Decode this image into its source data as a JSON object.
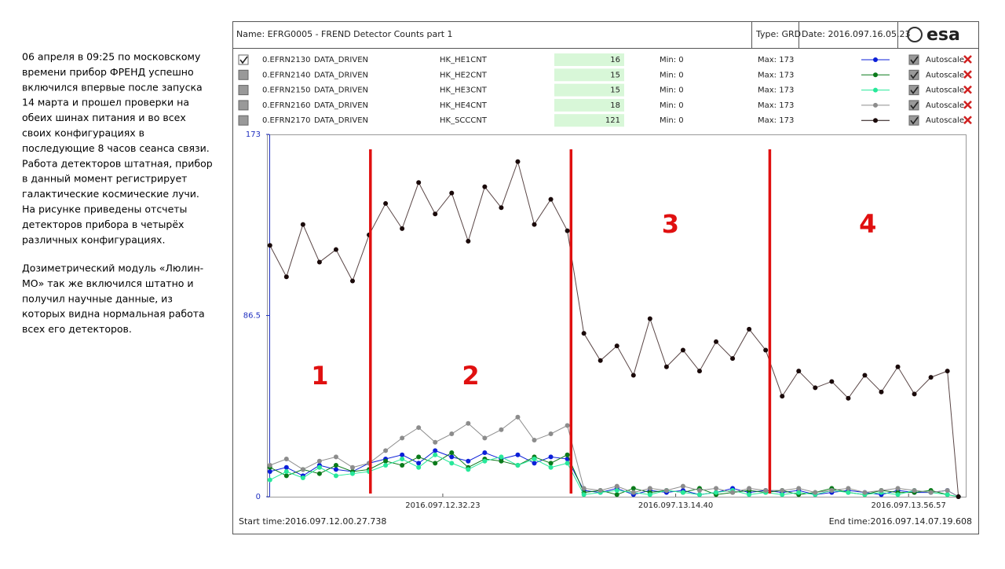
{
  "sidebar": {
    "paragraphs": [
      [
        "06 апреля в 09:25 по московскому",
        "времени прибор ФРЕНД успешно",
        "включился впервые после запуска",
        "14 марта и прошел проверки  на",
        "обеих шинах питания и во всех",
        "своих конфигурациях в",
        "последующие 8 часов сеанса связи.",
        "Работа детекторов штатная, прибор",
        "в данный момент регистрирует",
        "галактические космические лучи.",
        "На рисунке приведены отсчеты",
        "детекторов прибора в четырёх",
        "различных конфигурациях."
      ],
      [
        "Дозиметрический модуль «Люлин-",
        "МО» так же включился штатно и",
        "получил научные данные, из",
        "которых видна нормальная работа",
        "всех его детекторов."
      ]
    ]
  },
  "header": {
    "name": "Name: EFRG0005  -  FREND Detector Counts part 1",
    "type": "Type: GRD",
    "date": "Date: 2016.097.16.05.23",
    "logo": "esa"
  },
  "parameters": [
    {
      "id": "0.EFRN2130",
      "mode": "DATA_DRIVEN",
      "name": "HK_HE1CNT",
      "value": 16,
      "min": "Min: 0",
      "max": "Max: 173",
      "autoscale": "Autoscale"
    },
    {
      "id": "0.EFRN2140",
      "mode": "DATA_DRIVEN",
      "name": "HK_HE2CNT",
      "value": 15,
      "min": "Min: 0",
      "max": "Max: 173",
      "autoscale": "Autoscale"
    },
    {
      "id": "0.EFRN2150",
      "mode": "DATA_DRIVEN",
      "name": "HK_HE3CNT",
      "value": 15,
      "min": "Min: 0",
      "max": "Max: 173",
      "autoscale": "Autoscale"
    },
    {
      "id": "0.EFRN2160",
      "mode": "DATA_DRIVEN",
      "name": "HK_HE4CNT",
      "value": 18,
      "min": "Min: 0",
      "max": "Max: 173",
      "autoscale": "Autoscale"
    },
    {
      "id": "0.EFRN2170",
      "mode": "DATA_DRIVEN",
      "name": "HK_SCCCNT",
      "value": 121,
      "min": "Min: 0",
      "max": "Max: 173",
      "autoscale": "Autoscale"
    }
  ],
  "chart_data": {
    "type": "line",
    "x": [
      "2016.097.12.01.00",
      "2016.097.12.04.00",
      "2016.097.12.07.00",
      "2016.097.12.10.00",
      "2016.097.12.13.00",
      "2016.097.12.16.00",
      "2016.097.12.19.00",
      "2016.097.12.22.00",
      "2016.097.12.25.00",
      "2016.097.12.28.00",
      "2016.097.12.31.00",
      "2016.097.12.34.00",
      "2016.097.12.37.00",
      "2016.097.12.40.00",
      "2016.097.12.43.00",
      "2016.097.12.46.00",
      "2016.097.12.49.00",
      "2016.097.12.52.00",
      "2016.097.12.55.00",
      "2016.097.12.58.00",
      "2016.097.13.01.00",
      "2016.097.13.04.00",
      "2016.097.13.07.00",
      "2016.097.13.10.00",
      "2016.097.13.13.00",
      "2016.097.13.16.00",
      "2016.097.13.19.00",
      "2016.097.13.22.00",
      "2016.097.13.25.00",
      "2016.097.13.28.00",
      "2016.097.13.31.00",
      "2016.097.13.34.00",
      "2016.097.13.37.00",
      "2016.097.13.40.00",
      "2016.097.13.43.00",
      "2016.097.13.46.00",
      "2016.097.13.49.00",
      "2016.097.13.52.00",
      "2016.097.13.55.00",
      "2016.097.13.58.00",
      "2016.097.14.01.00",
      "2016.097.14.04.00",
      "2016.097.14.06.00"
    ],
    "series": [
      {
        "color": "#0b1fd8",
        "values": [
          12,
          14,
          10,
          15,
          13,
          12,
          16,
          18,
          20,
          16,
          22,
          19,
          17,
          21,
          18,
          20,
          16,
          19,
          18,
          3,
          2,
          4,
          1,
          3,
          2,
          3,
          1,
          2,
          4,
          2,
          3,
          2,
          3,
          1,
          2,
          3,
          2,
          1,
          3,
          2,
          2,
          3,
          0
        ]
      },
      {
        "color": "#0a7a1a",
        "values": [
          14,
          10,
          13,
          11,
          15,
          12,
          13,
          17,
          15,
          19,
          16,
          21,
          14,
          18,
          17,
          15,
          19,
          16,
          20,
          2,
          3,
          1,
          4,
          2,
          3,
          2,
          4,
          1,
          2,
          3,
          2,
          3,
          1,
          2,
          4,
          2,
          1,
          3,
          2,
          2,
          3,
          1,
          0
        ]
      },
      {
        "color": "#27e89a",
        "values": [
          8,
          12,
          9,
          14,
          10,
          11,
          12,
          15,
          18,
          14,
          20,
          16,
          13,
          17,
          19,
          15,
          18,
          14,
          16,
          1,
          2,
          3,
          2,
          1,
          3,
          2,
          1,
          2,
          3,
          1,
          2,
          1,
          2,
          1,
          3,
          2,
          1,
          2,
          1,
          3,
          2,
          1,
          0
        ]
      },
      {
        "color": "#8c8c8c",
        "values": [
          15,
          18,
          13,
          17,
          19,
          14,
          16,
          22,
          28,
          33,
          26,
          30,
          35,
          28,
          32,
          38,
          27,
          30,
          34,
          4,
          3,
          5,
          2,
          4,
          3,
          5,
          3,
          4,
          2,
          4,
          3,
          3,
          4,
          2,
          3,
          4,
          2,
          3,
          4,
          3,
          2,
          3,
          0
        ]
      },
      {
        "color": "#1a0a0a",
        "values": [
          120,
          105,
          130,
          112,
          118,
          103,
          125,
          140,
          128,
          150,
          135,
          145,
          122,
          148,
          138,
          160,
          130,
          142,
          127,
          78,
          65,
          72,
          58,
          85,
          62,
          70,
          60,
          74,
          66,
          80,
          70,
          48,
          60,
          52,
          55,
          47,
          58,
          50,
          62,
          49,
          57,
          60,
          0
        ]
      }
    ],
    "xlim": [
      "2016.097.12.00.27.738",
      "2016.097.14.07.19.608"
    ],
    "xticks": [
      "2016.097.12.32.23",
      "2016.097.13.14.40",
      "2016.097.13.56.57"
    ],
    "ylim": [
      0,
      173
    ],
    "yticks": [
      0,
      86.5,
      173
    ],
    "boundaries": [
      "2016.097.12.19.15",
      "2016.097.12.55.40",
      "2016.097.13.31.45"
    ],
    "boundary_color": "#e01010",
    "region_labels": [
      "1",
      "2",
      "3",
      "4"
    ]
  },
  "footer": {
    "start_label": "Start time:",
    "end_label": "End time:"
  }
}
